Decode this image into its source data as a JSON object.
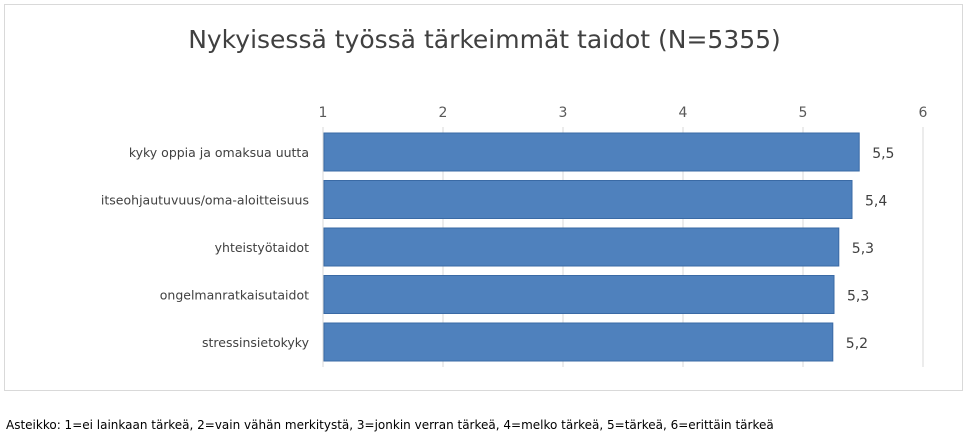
{
  "chart_data": {
    "type": "bar",
    "orientation": "horizontal",
    "title": "Nykyisessä työssä tärkeimmät taidot (N=5355)",
    "categories": [
      "kyky oppia ja omaksua uutta",
      "itseohjautuvuus/oma-aloitteisuus",
      "yhteistyötaidot",
      "ongelmanratkaisutaidot",
      "stressinsietokyky"
    ],
    "values": [
      5.46,
      5.4,
      5.29,
      5.25,
      5.24
    ],
    "data_labels": [
      "5,5",
      "5,4",
      "5,3",
      "5,3",
      "5,2"
    ],
    "axis_ticks": [
      "1",
      "2",
      "3",
      "4",
      "5",
      "6"
    ],
    "xlim": [
      1,
      6
    ],
    "axis_position": "top",
    "grid": true,
    "bar_color": "#4f81bd",
    "legend": "none"
  },
  "footnote": "Asteikko: 1=ei lainkaan tärkeä, 2=vain vähän merkitystä, 3=jonkin verran tärkeä, 4=melko tärkeä, 5=tärkeä, 6=erittäin tärkeä"
}
